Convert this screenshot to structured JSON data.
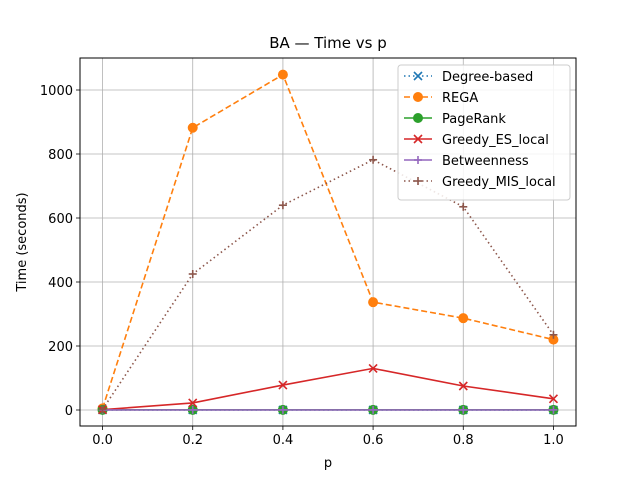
{
  "chart_data": {
    "type": "line",
    "title": "BA — Time vs p",
    "xlabel": "p",
    "ylabel": "Time (seconds)",
    "x": [
      0.0,
      0.2,
      0.4,
      0.6,
      0.8,
      1.0
    ],
    "xlim": [
      -0.05,
      1.05
    ],
    "ylim": [
      -50,
      1100
    ],
    "xticks": [
      0.0,
      0.2,
      0.4,
      0.6,
      0.8,
      1.0
    ],
    "xtick_labels": [
      "0.0",
      "0.2",
      "0.4",
      "0.6",
      "0.8",
      "1.0"
    ],
    "yticks": [
      0,
      200,
      400,
      600,
      800,
      1000
    ],
    "ytick_labels": [
      "0",
      "200",
      "400",
      "600",
      "800",
      "1000"
    ],
    "grid": true,
    "legend_position": "top-right",
    "series": [
      {
        "name": "Degree-based",
        "values": [
          0.2,
          0.2,
          0.2,
          0.2,
          0.2,
          0.2
        ],
        "color": "#1f77b4",
        "linestyle": "dotted",
        "marker": "x"
      },
      {
        "name": "REGA",
        "values": [
          5,
          882,
          1048,
          337,
          287,
          220
        ],
        "color": "#ff7f0e",
        "linestyle": "dashed",
        "marker": "circle"
      },
      {
        "name": "PageRank",
        "values": [
          0.5,
          0.5,
          0.5,
          0.5,
          0.5,
          0.5
        ],
        "color": "#2ca02c",
        "linestyle": "solid",
        "marker": "circle"
      },
      {
        "name": "Greedy_ES_local",
        "values": [
          1,
          22,
          78,
          130,
          75,
          35
        ],
        "color": "#d62728",
        "linestyle": "solid",
        "marker": "x"
      },
      {
        "name": "Betweenness",
        "values": [
          0.3,
          0.3,
          0.3,
          0.3,
          0.3,
          0.3
        ],
        "color": "#9467bd",
        "linestyle": "solid",
        "marker": "plus"
      },
      {
        "name": "Greedy_MIS_local",
        "values": [
          2,
          425,
          640,
          782,
          635,
          235
        ],
        "color": "#8c564b",
        "linestyle": "dotted",
        "marker": "plus"
      }
    ]
  }
}
